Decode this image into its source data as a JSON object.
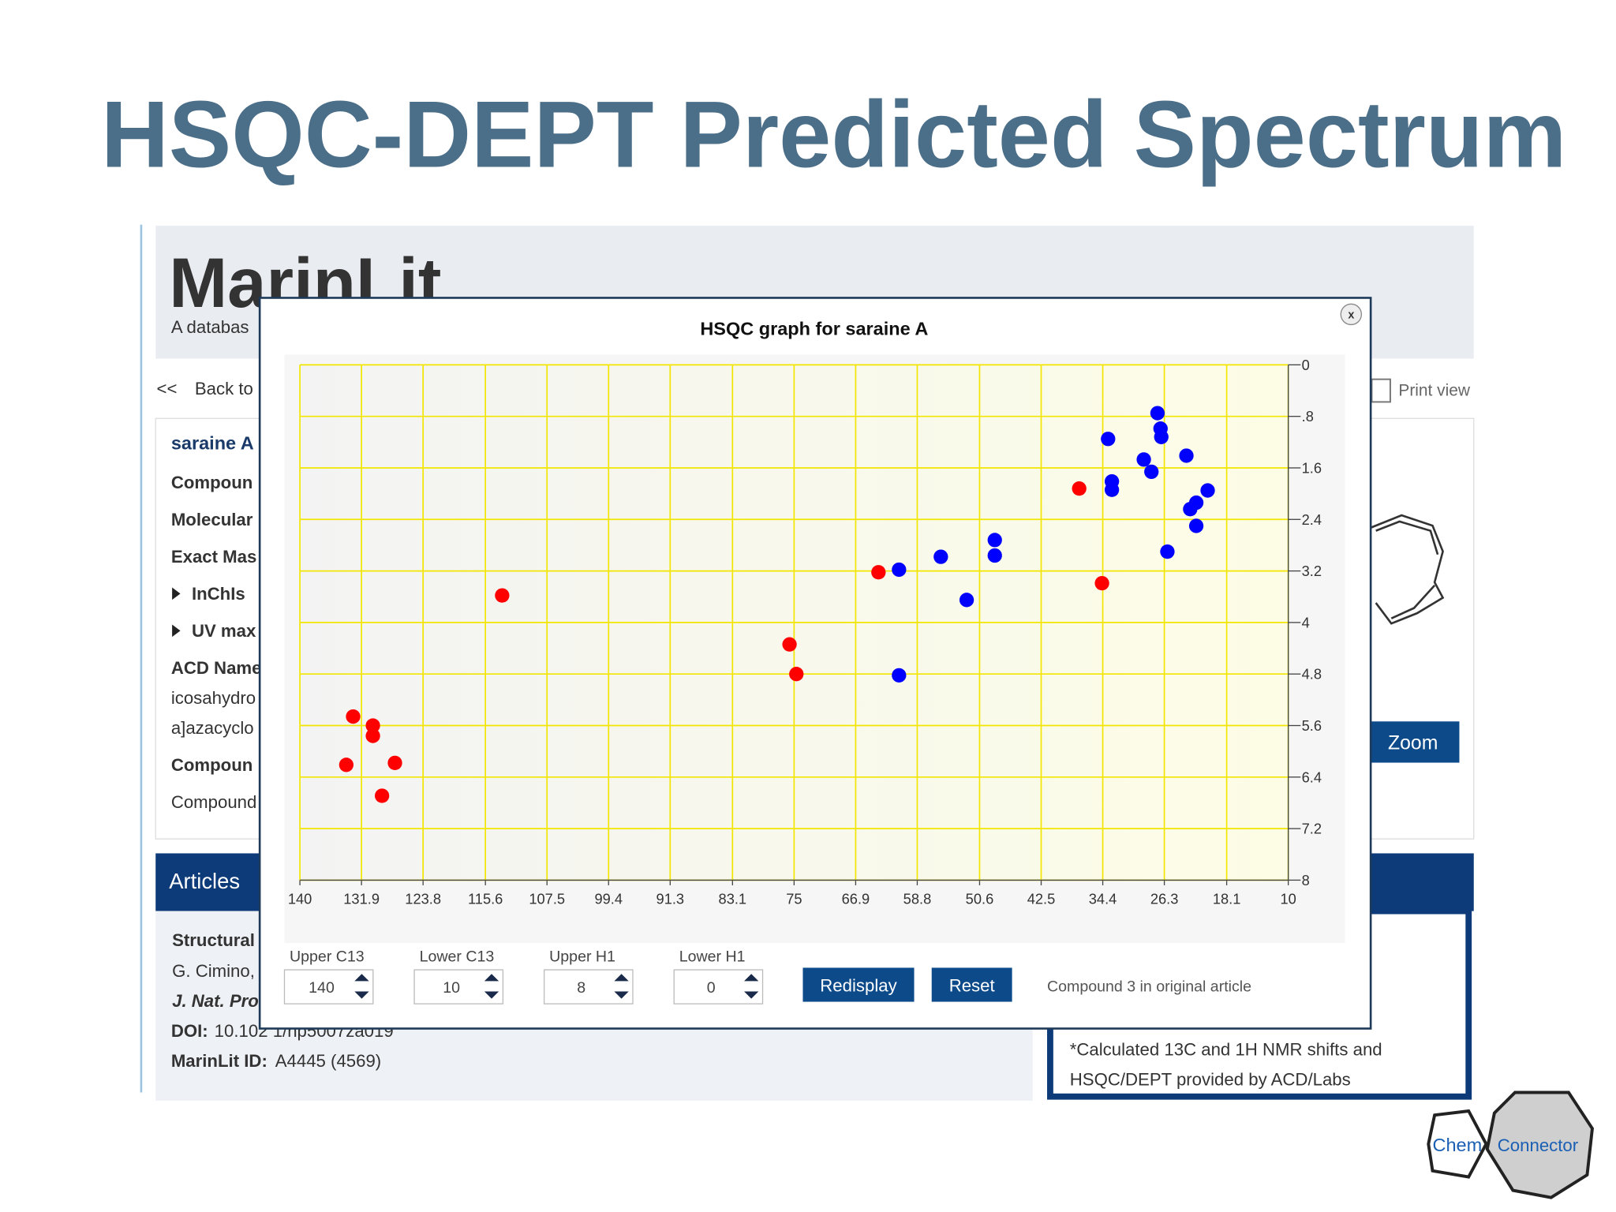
{
  "slide": {
    "title": "HSQC-DEPT Predicted Spectrum"
  },
  "background_page": {
    "logo": "MarinLit",
    "tagline": "A databas",
    "nav_arrows": "<<",
    "nav_back": "Back to",
    "print_view": "Print view",
    "compound_name": "saraine A",
    "fields": [
      "Compoun",
      "Molecular",
      "Exact Mas",
      "InChIs",
      "UV max",
      "ACD Name",
      "icosahydro",
      "a]azacyclo",
      "Compoun",
      "Compound"
    ],
    "zoom": "Zoom",
    "articles": "Articles",
    "article": {
      "title": "Structural",
      "authors": "G. Cimino,",
      "journal": "J. Nat. Pro",
      "doi_label": "DOI:",
      "doi": "10.102 1/np5007za019",
      "id_label": "MarinLit ID:",
      "id": "A4445 (4569)"
    },
    "note": [
      "*Calculated 13C and 1H NMR shifts and",
      "HSQC/DEPT provided by ACD/Labs"
    ]
  },
  "dialog": {
    "close": "x",
    "controls": [
      {
        "label": "Upper C13",
        "value": 140
      },
      {
        "label": "Lower C13",
        "value": 10
      },
      {
        "label": "Upper H1",
        "value": 8
      },
      {
        "label": "Lower H1",
        "value": 0
      }
    ],
    "buttons": [
      "Redisplay",
      "Reset"
    ],
    "note": "Compound 3 in original article"
  },
  "logo": {
    "left": "Chem",
    "right": "Connector"
  },
  "chart_data": {
    "type": "scatter",
    "title": "HSQC graph for saraine A",
    "xlim": [
      140,
      10
    ],
    "xticks": [
      140,
      131.9,
      123.8,
      115.6,
      107.5,
      99.4,
      91.3,
      83.1,
      75,
      66.9,
      58.8,
      50.6,
      42.5,
      34.4,
      26.3,
      18.1,
      10
    ],
    "ylim": [
      0,
      8
    ],
    "yticks": [
      0,
      {
        "value": 0.8,
        "label": ".8"
      },
      1.6,
      2.4,
      3.2,
      4,
      4.8,
      5.6,
      6.4,
      7.2,
      8
    ],
    "grid": true,
    "grid_color": "#f2e600",
    "series": [
      {
        "color": "#ff0000",
        "x": [
          113.4,
          63.9,
          75.6,
          74.7,
          37.5,
          34.5,
          133.0,
          130.4,
          130.4,
          133.9,
          127.5,
          129.2
        ],
        "values": [
          3.58,
          3.22,
          4.34,
          4.8,
          1.92,
          3.39,
          5.46,
          5.6,
          5.76,
          6.21,
          6.18,
          6.69
        ]
      },
      {
        "color": "#0000ff",
        "x": [
          27.2,
          26.8,
          26.7,
          33.7,
          29.0,
          28.0,
          23.4,
          33.2,
          33.2,
          20.6,
          22.1,
          22.9,
          22.1,
          25.9,
          48.6,
          48.6,
          55.7,
          61.2,
          52.3,
          61.2
        ],
        "values": [
          0.75,
          0.99,
          1.12,
          1.15,
          1.47,
          1.66,
          1.41,
          1.81,
          1.94,
          1.95,
          2.14,
          2.24,
          2.5,
          2.9,
          2.72,
          2.96,
          2.98,
          3.18,
          3.65,
          4.82
        ]
      }
    ]
  }
}
